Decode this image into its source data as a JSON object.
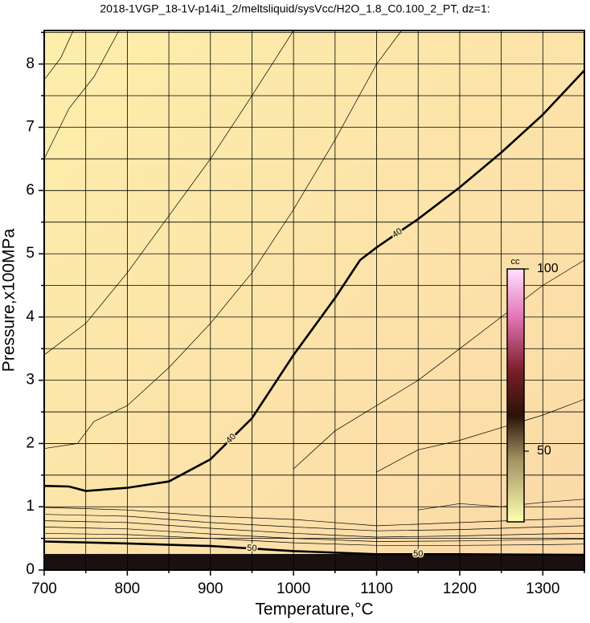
{
  "chart_data": {
    "type": "contour",
    "title": "2018-1VGP_18-1V-p14i1_2/meltsliquid/sysVcc/H2O_1.8_C0.100_2_PT, dz=1:",
    "x_label": "Temperature,°C",
    "y_label": "Pressure,x100MPa",
    "xlim": [
      700,
      1350
    ],
    "ylim": [
      0,
      8.53
    ],
    "xticks": [
      700,
      800,
      900,
      1000,
      1100,
      1200,
      1300
    ],
    "yticks": [
      0,
      1,
      2,
      3,
      4,
      5,
      6,
      7,
      8
    ],
    "xminorticks": [
      750,
      850,
      950,
      1050,
      1150,
      1250,
      1350
    ],
    "yminorticks": [
      0.5,
      1.5,
      2.5,
      3.5,
      4.5,
      5.5,
      6.5,
      7.5,
      8.5
    ],
    "grid": true,
    "contours": [
      {
        "level": 40,
        "bold": true,
        "x": [
          700,
          730,
          750,
          800,
          850,
          900,
          950,
          1000,
          1050,
          1080,
          1100,
          1150,
          1200,
          1250,
          1300,
          1350
        ],
        "y": [
          1.33,
          1.32,
          1.25,
          1.3,
          1.4,
          1.75,
          2.4,
          3.4,
          4.3,
          4.9,
          5.1,
          5.55,
          6.05,
          6.6,
          7.2,
          7.9
        ]
      },
      {
        "x": [
          700,
          740,
          760,
          800,
          850,
          900,
          950,
          1000,
          1050,
          1100,
          1130
        ],
        "y": [
          1.92,
          2.0,
          2.35,
          2.6,
          3.2,
          3.9,
          4.7,
          5.7,
          6.8,
          8.0,
          8.53
        ]
      },
      {
        "x": [
          700,
          750,
          800,
          850,
          900,
          950,
          1000
        ],
        "y": [
          3.4,
          3.9,
          4.7,
          5.6,
          6.5,
          7.5,
          8.53
        ]
      },
      {
        "x": [
          700,
          730,
          760,
          790
        ],
        "y": [
          6.5,
          7.3,
          7.8,
          8.53
        ]
      },
      {
        "x": [
          700,
          720,
          735
        ],
        "y": [
          7.75,
          8.1,
          8.53
        ]
      },
      {
        "x": [
          1000,
          1050,
          1100,
          1150,
          1200,
          1250,
          1300,
          1350
        ],
        "y": [
          1.6,
          2.2,
          2.6,
          3.0,
          3.5,
          4.0,
          4.5,
          4.9
        ]
      },
      {
        "x": [
          1100,
          1150,
          1200,
          1250,
          1300,
          1350
        ],
        "y": [
          1.55,
          1.9,
          2.05,
          2.25,
          2.45,
          2.7
        ]
      },
      {
        "x": [
          1150,
          1200,
          1250,
          1300,
          1350
        ],
        "y": [
          0.95,
          1.05,
          1.0,
          1.07,
          1.12
        ]
      },
      {
        "x": [
          700,
          800,
          900,
          1000,
          1100,
          1200,
          1300,
          1350
        ],
        "y": [
          0.99,
          0.95,
          0.85,
          0.8,
          0.7,
          0.75,
          0.8,
          0.82
        ]
      },
      {
        "x": [
          700,
          800,
          900,
          1000,
          1100,
          1200,
          1300,
          1350
        ],
        "y": [
          0.88,
          0.85,
          0.75,
          0.68,
          0.62,
          0.64,
          0.68,
          0.7
        ]
      },
      {
        "x": [
          700,
          800,
          900,
          1000,
          1100,
          1200,
          1300,
          1350
        ],
        "y": [
          0.78,
          0.75,
          0.66,
          0.58,
          0.52,
          0.54,
          0.57,
          0.58
        ]
      },
      {
        "x": [
          700,
          800,
          900,
          1000,
          1100,
          1200,
          1300,
          1350
        ],
        "y": [
          0.68,
          0.65,
          0.57,
          0.5,
          0.45,
          0.46,
          0.48,
          0.49
        ]
      },
      {
        "x": [
          700,
          800,
          900,
          1000,
          1100,
          1200,
          1300,
          1350
        ],
        "y": [
          0.58,
          0.56,
          0.5,
          0.43,
          0.39,
          0.39,
          0.4,
          0.41
        ]
      },
      {
        "level": 50,
        "bold": true,
        "x": [
          700,
          800,
          900,
          1000,
          1100,
          1200,
          1350
        ],
        "y": [
          0.45,
          0.42,
          0.38,
          0.3,
          0.25,
          0.25,
          0.24
        ]
      }
    ],
    "colorbar": {
      "label": "cc",
      "clim": [
        30.6,
        100
      ],
      "ticks": [
        50,
        100
      ]
    }
  }
}
